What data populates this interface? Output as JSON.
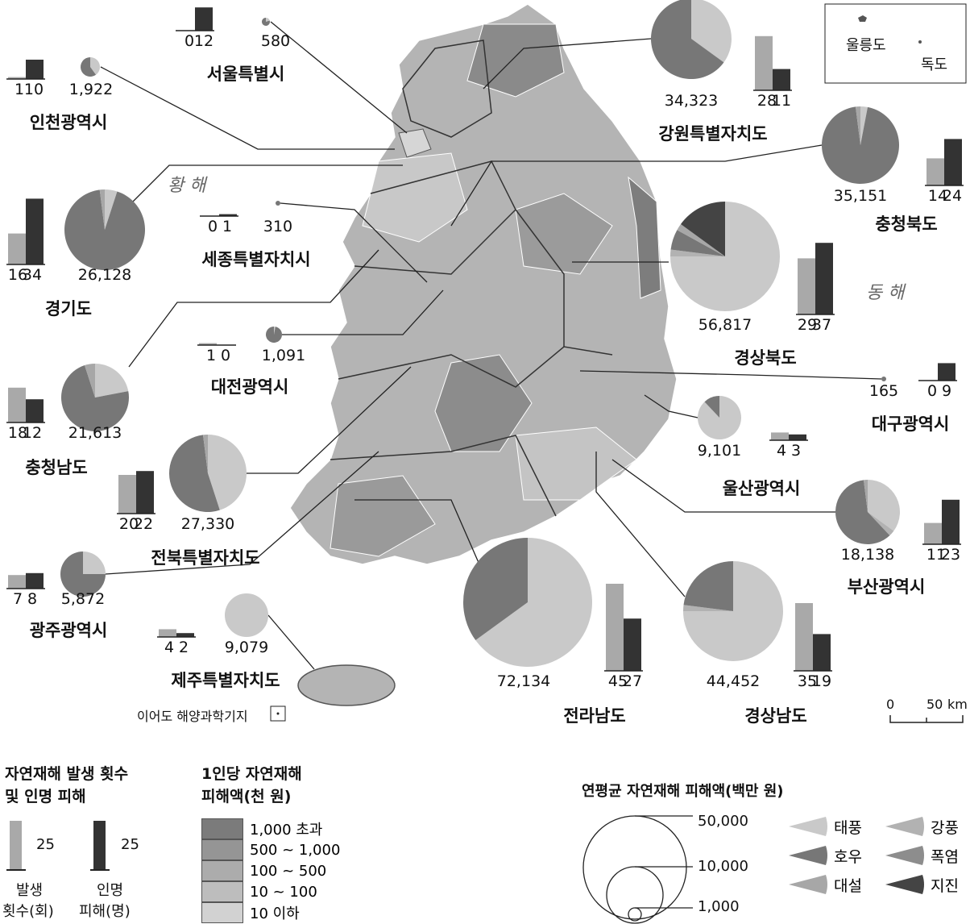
{
  "sea_labels": {
    "west": "황 해",
    "east": "동 해"
  },
  "inset": {
    "ulleungdo": "울릉도",
    "dokdo": "독도"
  },
  "ieodo": "이어도 해양과학기지",
  "scale": {
    "zero": "0",
    "distance": "50",
    "unit": "km"
  },
  "disaster_colors": {
    "태풍": "#c9c9c9",
    "강풍": "#b2b2b2",
    "호우": "#777777",
    "폭염": "#8d8d8d",
    "대설": "#a7a7a7",
    "지진": "#444444"
  },
  "regions": [
    {
      "name": "서울특별시",
      "occurrences": 0,
      "casualties": 12,
      "damage": "580",
      "shares": {
        "태풍": 20,
        "호우": 80
      }
    },
    {
      "name": "인천광역시",
      "occurrences": 1,
      "casualties": 10,
      "damage": "1,922",
      "shares": {
        "태풍": 40,
        "호우": 60
      }
    },
    {
      "name": "강원특별자치도",
      "occurrences": 28,
      "casualties": 11,
      "damage": "34,323",
      "shares": {
        "태풍": 35,
        "호우": 65
      }
    },
    {
      "name": "충청북도",
      "occurrences": 14,
      "casualties": 24,
      "damage": "35,151",
      "shares": {
        "태풍": 3,
        "대설": 2,
        "호우": 95
      }
    },
    {
      "name": "경기도",
      "occurrences": 16,
      "casualties": 34,
      "damage": "26,128",
      "shares": {
        "태풍": 5,
        "대설": 2,
        "호우": 93
      }
    },
    {
      "name": "세종특별자치시",
      "occurrences": 0,
      "casualties": 1,
      "damage": "310",
      "shares": {
        "호우": 100
      }
    },
    {
      "name": "경상북도",
      "occurrences": 29,
      "casualties": 37,
      "damage": "56,817",
      "shares": {
        "태풍": 75,
        "호우": 6,
        "대설": 2,
        "강풍": 2,
        "지진": 15
      }
    },
    {
      "name": "대전광역시",
      "occurrences": 1,
      "casualties": 0,
      "damage": "1,091",
      "shares": {
        "태풍": 3,
        "호우": 97
      }
    },
    {
      "name": "대구광역시",
      "occurrences": 0,
      "casualties": 9,
      "damage": "165",
      "shares": {
        "호우": 100
      }
    },
    {
      "name": "충청남도",
      "occurrences": 18,
      "casualties": 12,
      "damage": "21,613",
      "shares": {
        "태풍": 22,
        "대설": 5,
        "호우": 73
      }
    },
    {
      "name": "울산광역시",
      "occurrences": 4,
      "casualties": 3,
      "damage": "9,101",
      "shares": {
        "태풍": 88,
        "호우": 12
      }
    },
    {
      "name": "전북특별자치도",
      "occurrences": 20,
      "casualties": 22,
      "damage": "27,330",
      "shares": {
        "태풍": 45,
        "대설": 2,
        "호우": 53
      }
    },
    {
      "name": "부산광역시",
      "occurrences": 11,
      "casualties": 23,
      "damage": "18,138",
      "shares": {
        "태풍": 35,
        "강풍": 3,
        "대설": 2,
        "호우": 60
      }
    },
    {
      "name": "광주광역시",
      "occurrences": 7,
      "casualties": 8,
      "damage": "5,872",
      "shares": {
        "태풍": 25,
        "호우": 75
      }
    },
    {
      "name": "제주특별자치도",
      "occurrences": 4,
      "casualties": 2,
      "damage": "9,079",
      "shares": {
        "태풍": 100
      }
    },
    {
      "name": "전라남도",
      "occurrences": 45,
      "casualties": 27,
      "damage": "72,134",
      "shares": {
        "태풍": 65,
        "호우": 35
      }
    },
    {
      "name": "경상남도",
      "occurrences": 35,
      "casualties": 19,
      "damage": "44,452",
      "shares": {
        "태풍": 75,
        "강풍": 2,
        "호우": 23
      }
    }
  ],
  "legend_bars": {
    "title_line1": "자연재해 발생 횟수",
    "title_line2": "및 인명 피해",
    "value_occ": "25",
    "value_cas": "25",
    "occ_l1": "발생",
    "occ_l2": "횟수(회)",
    "cas_l1": "인명",
    "cas_l2": "피해(명)"
  },
  "legend_choropleth": {
    "title_line1": "1인당 자연재해",
    "title_line2": "피해액(천 원)",
    "classes": [
      {
        "label": "1,000 초과",
        "color": "#7b7b7b"
      },
      {
        "label": "500 ~ 1,000",
        "color": "#959595"
      },
      {
        "label": "100 ~ 500",
        "color": "#acacac"
      },
      {
        "label": "10 ~ 100",
        "color": "#bdbdbd"
      },
      {
        "label": "10 이하",
        "color": "#d2d2d2"
      }
    ]
  },
  "legend_circles": {
    "title": "연평균 자연재해 피해액(백만 원)",
    "values": [
      "50,000",
      "10,000",
      "1,000"
    ],
    "types": [
      "태풍",
      "강풍",
      "호우",
      "폭염",
      "대설",
      "지진"
    ]
  }
}
